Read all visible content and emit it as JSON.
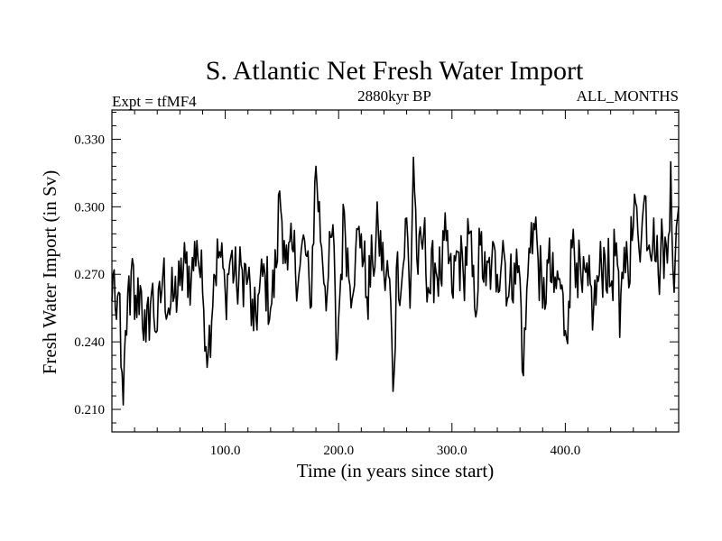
{
  "chart_data": {
    "type": "line",
    "title": "S. Atlantic Net Fresh Water Import",
    "subtitle_left": "Expt = tfMF4",
    "subtitle_center": "2880kyr BP",
    "subtitle_right": "ALL_MONTHS",
    "xlabel": "Time (in years since start)",
    "ylabel": "Fresh Water Import (in Sv)",
    "xlim": [
      0,
      500
    ],
    "ylim": [
      0.2,
      0.343
    ],
    "xticks": [
      100,
      200,
      300,
      400
    ],
    "xtick_labels": [
      "100.0",
      "200.0",
      "300.0",
      "400.0"
    ],
    "yticks": [
      0.21,
      0.24,
      0.27,
      0.3,
      0.33
    ],
    "ytick_labels": [
      "0.210",
      "0.240",
      "0.270",
      "0.300",
      "0.330"
    ],
    "series": [
      {
        "name": "Net Fresh Water Import",
        "color": "#000000",
        "anchors": [
          [
            0,
            0.258
          ],
          [
            2,
            0.272
          ],
          [
            4,
            0.25
          ],
          [
            6,
            0.262
          ],
          [
            8,
            0.229
          ],
          [
            10,
            0.212
          ],
          [
            12,
            0.245
          ],
          [
            14,
            0.262
          ],
          [
            16,
            0.252
          ],
          [
            18,
            0.277
          ],
          [
            20,
            0.25
          ],
          [
            25,
            0.265
          ],
          [
            30,
            0.24
          ],
          [
            35,
            0.262
          ],
          [
            40,
            0.245
          ],
          [
            45,
            0.27
          ],
          [
            50,
            0.255
          ],
          [
            55,
            0.26
          ],
          [
            60,
            0.265
          ],
          [
            65,
            0.275
          ],
          [
            70,
            0.268
          ],
          [
            75,
            0.285
          ],
          [
            80,
            0.262
          ],
          [
            85,
            0.235
          ],
          [
            90,
            0.27
          ],
          [
            95,
            0.28
          ],
          [
            100,
            0.262
          ],
          [
            105,
            0.278
          ],
          [
            110,
            0.265
          ],
          [
            115,
            0.272
          ],
          [
            120,
            0.268
          ],
          [
            125,
            0.245
          ],
          [
            130,
            0.262
          ],
          [
            135,
            0.27
          ],
          [
            140,
            0.255
          ],
          [
            145,
            0.273
          ],
          [
            148,
            0.307
          ],
          [
            152,
            0.285
          ],
          [
            155,
            0.272
          ],
          [
            160,
            0.28
          ],
          [
            165,
            0.27
          ],
          [
            170,
            0.285
          ],
          [
            175,
            0.255
          ],
          [
            180,
            0.318
          ],
          [
            185,
            0.282
          ],
          [
            190,
            0.262
          ],
          [
            195,
            0.292
          ],
          [
            198,
            0.232
          ],
          [
            202,
            0.27
          ],
          [
            205,
            0.298
          ],
          [
            210,
            0.265
          ],
          [
            215,
            0.28
          ],
          [
            220,
            0.288
          ],
          [
            225,
            0.26
          ],
          [
            230,
            0.275
          ],
          [
            235,
            0.29
          ],
          [
            240,
            0.27
          ],
          [
            245,
            0.268
          ],
          [
            248,
            0.218
          ],
          [
            252,
            0.28
          ],
          [
            255,
            0.262
          ],
          [
            260,
            0.295
          ],
          [
            263,
            0.255
          ],
          [
            266,
            0.322
          ],
          [
            270,
            0.27
          ],
          [
            275,
            0.288
          ],
          [
            280,
            0.262
          ],
          [
            285,
            0.275
          ],
          [
            290,
            0.268
          ],
          [
            295,
            0.285
          ],
          [
            300,
            0.262
          ],
          [
            305,
            0.28
          ],
          [
            310,
            0.27
          ],
          [
            315,
            0.288
          ],
          [
            320,
            0.255
          ],
          [
            325,
            0.283
          ],
          [
            330,
            0.265
          ],
          [
            335,
            0.275
          ],
          [
            340,
            0.27
          ],
          [
            345,
            0.285
          ],
          [
            350,
            0.26
          ],
          [
            355,
            0.275
          ],
          [
            360,
            0.268
          ],
          [
            363,
            0.225
          ],
          [
            367,
            0.27
          ],
          [
            370,
            0.293
          ],
          [
            375,
            0.285
          ],
          [
            380,
            0.255
          ],
          [
            385,
            0.275
          ],
          [
            390,
            0.262
          ],
          [
            395,
            0.268
          ],
          [
            400,
            0.245
          ],
          [
            403,
            0.258
          ],
          [
            407,
            0.29
          ],
          [
            410,
            0.275
          ],
          [
            415,
            0.262
          ],
          [
            420,
            0.265
          ],
          [
            425,
            0.255
          ],
          [
            430,
            0.27
          ],
          [
            435,
            0.278
          ],
          [
            440,
            0.265
          ],
          [
            445,
            0.284
          ],
          [
            448,
            0.242
          ],
          [
            452,
            0.282
          ],
          [
            455,
            0.275
          ],
          [
            460,
            0.291
          ],
          [
            463,
            0.3
          ],
          [
            467,
            0.285
          ],
          [
            470,
            0.305
          ],
          [
            474,
            0.283
          ],
          [
            478,
            0.295
          ],
          [
            482,
            0.27
          ],
          [
            486,
            0.285
          ],
          [
            490,
            0.275
          ],
          [
            493,
            0.32
          ],
          [
            496,
            0.262
          ],
          [
            500,
            0.3
          ]
        ],
        "noise_amplitude": 0.016,
        "samples_per_year": 1
      }
    ]
  }
}
